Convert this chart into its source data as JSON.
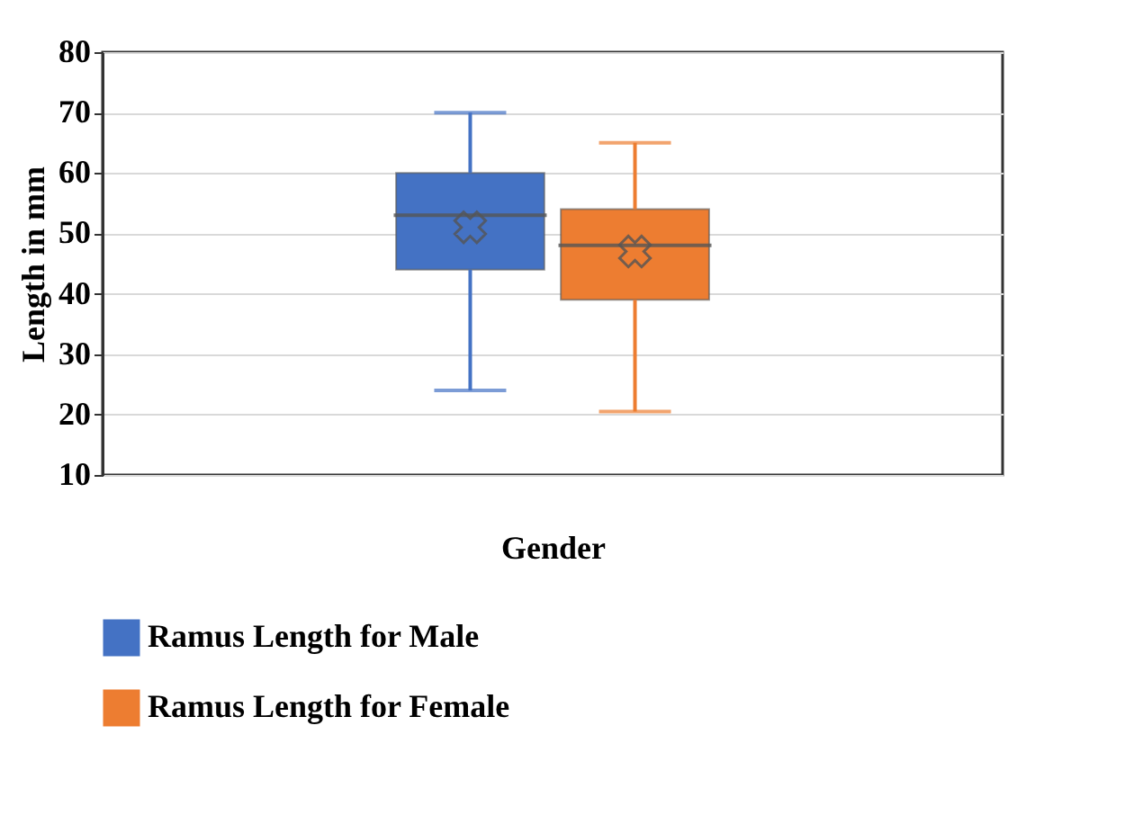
{
  "chart_data": {
    "type": "box",
    "xlabel": "Gender",
    "ylabel": "Length in mm",
    "categories": [
      null
    ],
    "series": [
      {
        "name": "Ramus Length for Male",
        "color": "#4472c4",
        "boxes": [
          {
            "low": 24,
            "q1": 44,
            "median": 53,
            "q3": 60,
            "high": 70,
            "mean": 51
          }
        ]
      },
      {
        "name": "Ramus Length for Female",
        "color": "#ed7d31",
        "boxes": [
          {
            "low": 20.5,
            "q1": 39,
            "median": 48,
            "q3": 54,
            "high": 65,
            "mean": 47
          }
        ]
      }
    ],
    "ylim": [
      10,
      80
    ],
    "yticks": [
      10,
      20,
      30,
      40,
      50,
      60,
      70,
      80
    ],
    "grid": "y",
    "legend": "bottom",
    "marker": "cross"
  }
}
